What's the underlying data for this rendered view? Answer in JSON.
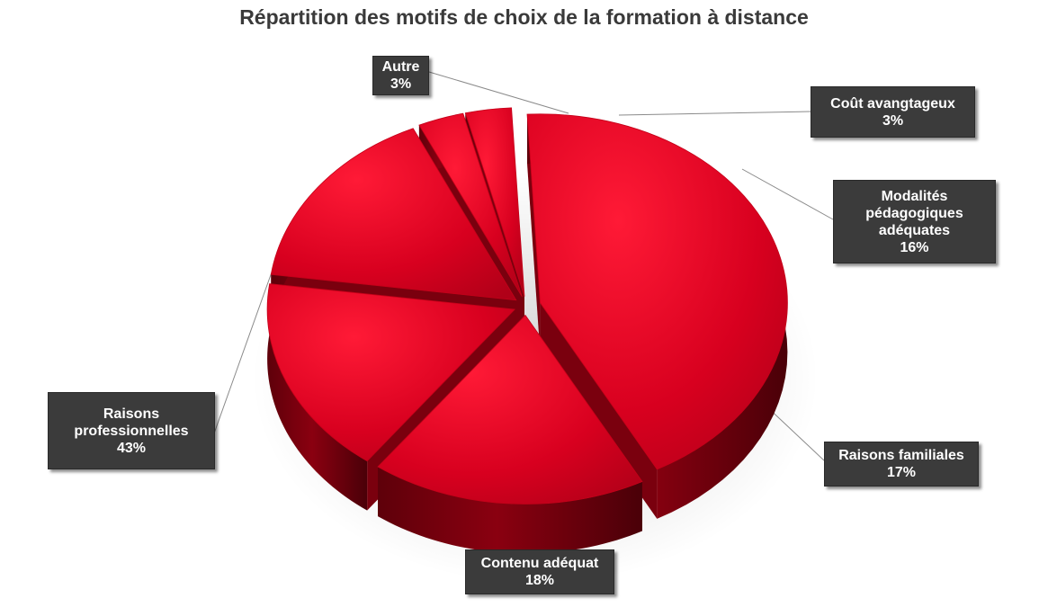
{
  "chart_data": {
    "type": "pie",
    "title": "Répartition des motifs de choix de la formation à distance",
    "slices": [
      {
        "label": "Raisons professionnelles",
        "label_lines": [
          "Raisons",
          "professionnelles"
        ],
        "value": 43,
        "value_text": "43%"
      },
      {
        "label": "Contenu adéquat",
        "label_lines": [
          "Contenu adéquat"
        ],
        "value": 18,
        "value_text": "18%"
      },
      {
        "label": "Raisons familiales",
        "label_lines": [
          "Raisons familiales"
        ],
        "value": 17,
        "value_text": "17%"
      },
      {
        "label": "Modalités pédagogiques adéquates",
        "label_lines": [
          "Modalités",
          "pédagogiques",
          "adéquates"
        ],
        "value": 16,
        "value_text": "16%"
      },
      {
        "label": "Coût avangtageux",
        "label_lines": [
          "Coût avangtageux"
        ],
        "value": 3,
        "value_text": "3%"
      },
      {
        "label": "Autre",
        "label_lines": [
          "Autre"
        ],
        "value": 3,
        "value_text": "3%"
      }
    ],
    "exploded": true,
    "style": "3d",
    "legend": "none",
    "data_labels": "callouts"
  },
  "colors": {
    "slice_top": "#d8001f",
    "slice_side": "#8a0010",
    "callout_bg": "#3b3b3b",
    "callout_text": "#ffffff",
    "title": "#3a3a3a",
    "leader": "#8a8a8a"
  }
}
